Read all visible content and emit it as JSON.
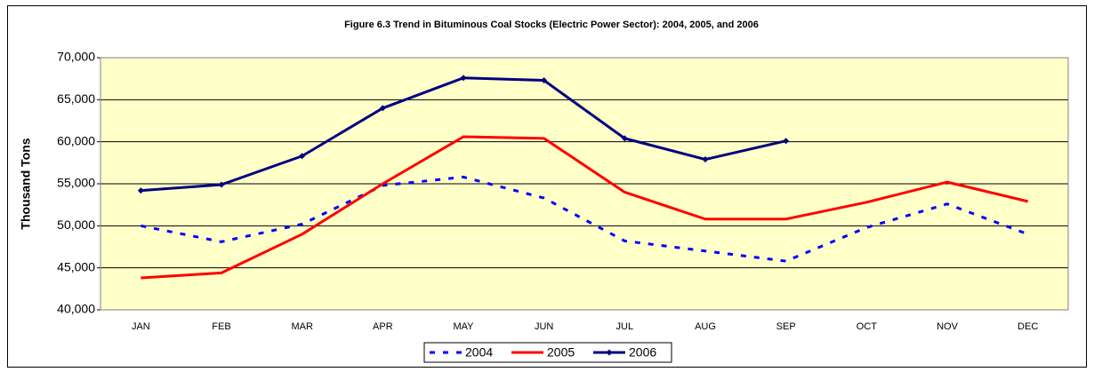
{
  "chart_data": {
    "type": "line",
    "title": "Figure 6.3 Trend in Bituminous Coal Stocks (Electric Power Sector):  2004, 2005, and 2006",
    "y_label": "Thousand Tons",
    "categories": [
      "JAN",
      "FEB",
      "MAR",
      "APR",
      "MAY",
      "JUN",
      "JUL",
      "AUG",
      "SEP",
      "OCT",
      "NOV",
      "DEC"
    ],
    "series": [
      {
        "name": "2004",
        "color": "#0000ff",
        "line_style": "dashed",
        "marker": "none",
        "values": [
          50000,
          48100,
          50200,
          54800,
          55800,
          53300,
          48200,
          47000,
          45800,
          49800,
          52600,
          49000
        ]
      },
      {
        "name": "2005",
        "color": "#ff0000",
        "line_style": "solid",
        "marker": "none",
        "values": [
          43800,
          44400,
          49000,
          55000,
          60600,
          60400,
          54000,
          50800,
          50800,
          52800,
          55200,
          52900
        ]
      },
      {
        "name": "2006",
        "color": "#000080",
        "line_style": "solid",
        "marker": "diamond",
        "values": [
          54200,
          54900,
          58300,
          64000,
          67600,
          67300,
          60400,
          57900,
          60100,
          null,
          null,
          null
        ]
      }
    ],
    "ylim": [
      40000,
      70000
    ],
    "yticks": [
      {
        "value": 40000,
        "label": "40,000"
      },
      {
        "value": 45000,
        "label": "45,000"
      },
      {
        "value": 50000,
        "label": "50,000"
      },
      {
        "value": 55000,
        "label": "55,000"
      },
      {
        "value": 60000,
        "label": "60,000"
      },
      {
        "value": 65000,
        "label": "65,000"
      },
      {
        "value": 70000,
        "label": "70,000"
      }
    ],
    "grid": true,
    "plot_background": "#ffffc8",
    "legend_position": "bottom"
  }
}
